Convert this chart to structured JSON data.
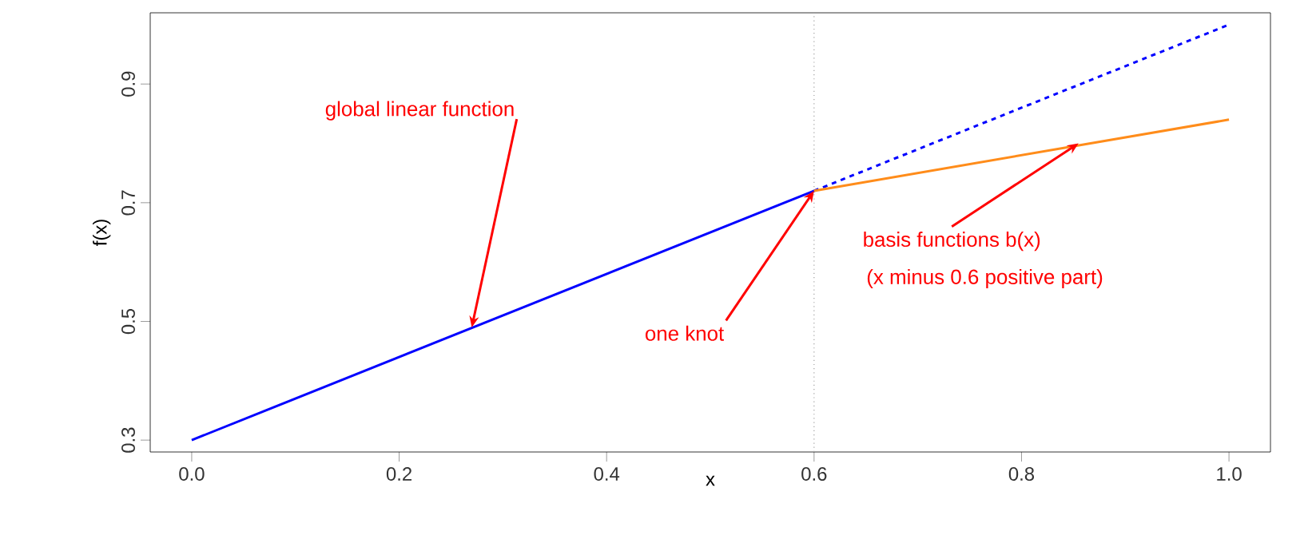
{
  "chart_data": {
    "type": "line",
    "xlabel": "x",
    "ylabel": "f(x)",
    "xlim": [
      -0.04,
      1.04
    ],
    "ylim": [
      0.28,
      1.02
    ],
    "xticks": [
      {
        "value": 0,
        "label": "0.0"
      },
      0.2,
      0.4,
      0.6,
      0.8,
      {
        "value": 1,
        "label": "1.0"
      }
    ],
    "yticks": [
      0.3,
      0.5,
      0.7,
      0.9
    ],
    "series": [
      {
        "color": "#0000ff",
        "line_style": "solid",
        "x": [
          0,
          0.6
        ],
        "values": [
          0.3,
          0.72
        ]
      },
      {
        "color": "#0000ff",
        "line_style": "dashed",
        "x": [
          0.6,
          1.0
        ],
        "values": [
          0.72,
          1.0
        ]
      },
      {
        "color": "#ff8c1a",
        "line_style": "solid",
        "x": [
          0.6,
          1.0
        ],
        "values": [
          0.72,
          0.84
        ]
      }
    ],
    "ref_lines": [
      {
        "axis": "x",
        "value": 0.6,
        "color": "#a0a0a0",
        "line_style": "dotted"
      }
    ],
    "annotations": [
      {
        "text": "global linear function",
        "x": 0.27,
        "y": 0.49
      },
      {
        "text": "one knot",
        "x": 0.6,
        "y": 0.72
      },
      {
        "text": "basis functions b(x)",
        "x": 0.855,
        "y": 0.8
      },
      "(x minus 0.6 positive part)"
    ]
  }
}
